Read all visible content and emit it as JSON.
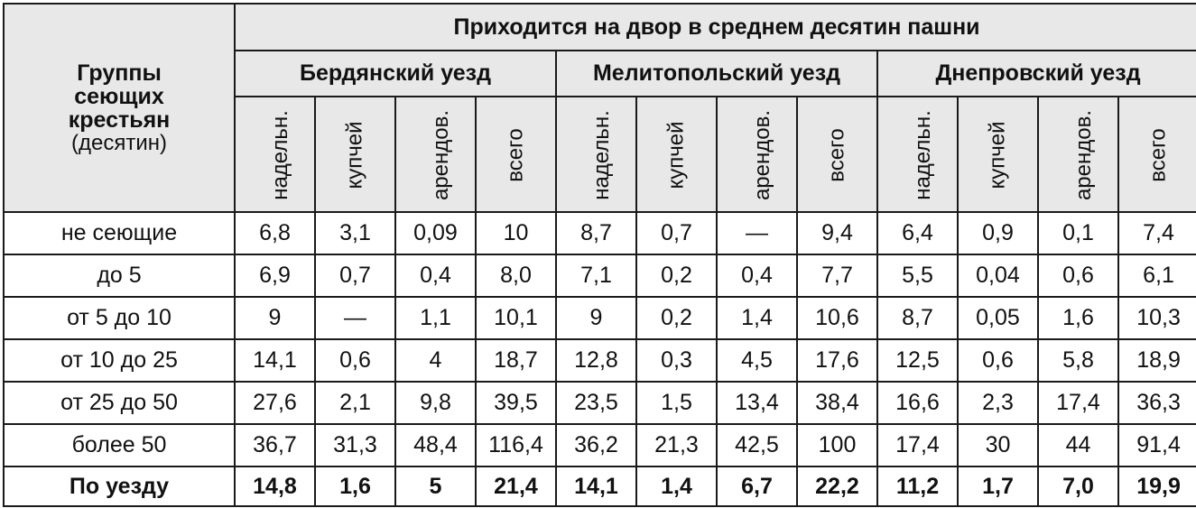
{
  "header": {
    "groups_label_lines": [
      "Группы",
      "сеющих",
      "крестьян"
    ],
    "groups_unit": "(десятин)",
    "main_title": "Приходится на двор в среднем десятин пашни",
    "districts": [
      "Бердянский уезд",
      "Мелитопольский уезд",
      "Днепровский уезд"
    ],
    "subcolumns": [
      "надельн.",
      "купчей",
      "арендов.",
      "всего"
    ]
  },
  "rows": [
    {
      "group": "не сеющие",
      "values": [
        "6,8",
        "3,1",
        "0,09",
        "10",
        "8,7",
        "0,7",
        "—",
        "9,4",
        "6,4",
        "0,9",
        "0,1",
        "7,4"
      ]
    },
    {
      "group": "до 5",
      "values": [
        "6,9",
        "0,7",
        "0,4",
        "8,0",
        "7,1",
        "0,2",
        "0,4",
        "7,7",
        "5,5",
        "0,04",
        "0,6",
        "6,1"
      ]
    },
    {
      "group": "от 5 до 10",
      "values": [
        "9",
        "—",
        "1,1",
        "10,1",
        "9",
        "0,2",
        "1,4",
        "10,6",
        "8,7",
        "0,05",
        "1,6",
        "10,3"
      ]
    },
    {
      "group": "от 10 до 25",
      "values": [
        "14,1",
        "0,6",
        "4",
        "18,7",
        "12,8",
        "0,3",
        "4,5",
        "17,6",
        "12,5",
        "0,6",
        "5,8",
        "18,9"
      ]
    },
    {
      "group": "от 25 до 50",
      "values": [
        "27,6",
        "2,1",
        "9,8",
        "39,5",
        "23,5",
        "1,5",
        "13,4",
        "38,4",
        "16,6",
        "2,3",
        "17,4",
        "36,3"
      ]
    },
    {
      "group": "более 50",
      "values": [
        "36,7",
        "31,3",
        "48,4",
        "116,4",
        "36,2",
        "21,3",
        "42,5",
        "100",
        "17,4",
        "30",
        "44",
        "91,4"
      ]
    },
    {
      "group": "По уезду",
      "values": [
        "14,8",
        "1,6",
        "5",
        "21,4",
        "14,1",
        "1,4",
        "6,7",
        "22,2",
        "11,2",
        "1,7",
        "7,0",
        "19,9"
      ],
      "total": true
    }
  ]
}
